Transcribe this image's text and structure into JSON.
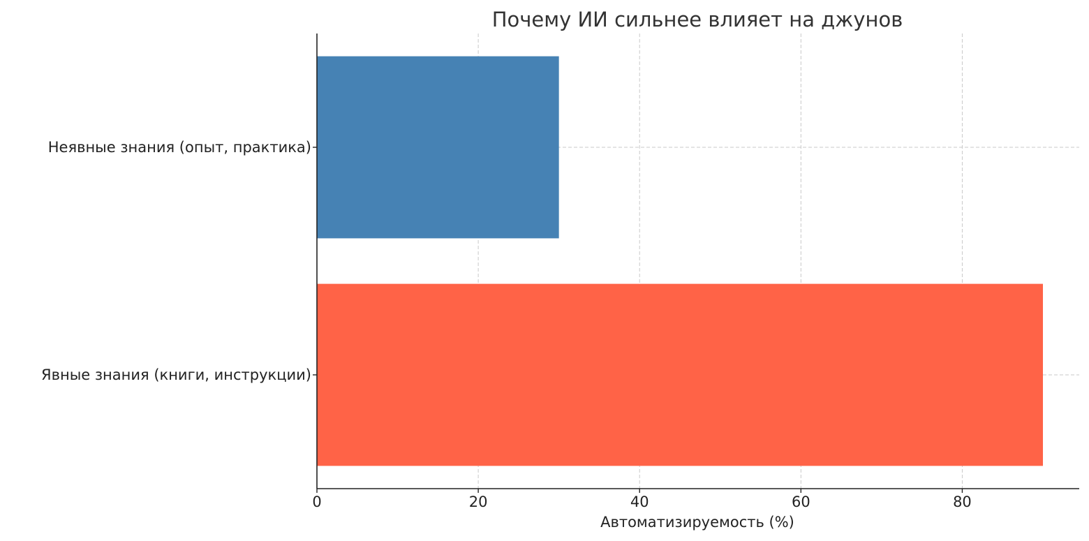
{
  "chart_data": {
    "type": "bar",
    "orientation": "horizontal",
    "title": "Почему ИИ сильнее влияет на джунов",
    "xlabel": "Автоматизируемость (%)",
    "ylabel": "",
    "categories": [
      "Явные знания (книги, инструкции)",
      "Неявные знания (опыт, практика)"
    ],
    "values": [
      90,
      30
    ],
    "colors": [
      "#FF6347",
      "#4682B4"
    ],
    "xlim": [
      0,
      94.5
    ],
    "xticks": [
      0,
      20,
      40,
      60,
      80
    ],
    "grid": true
  }
}
